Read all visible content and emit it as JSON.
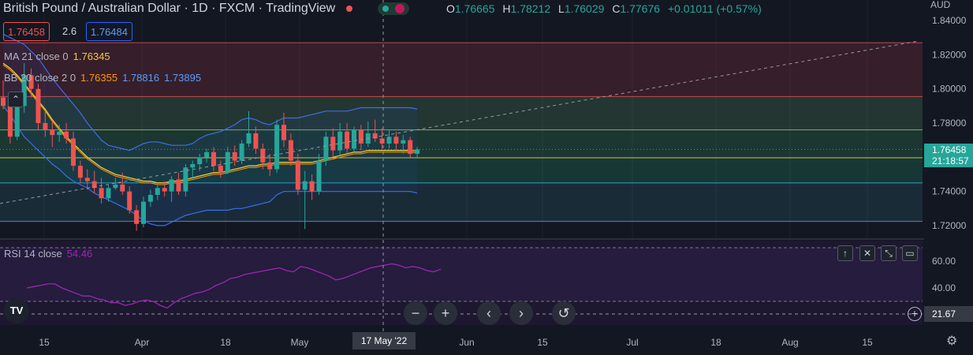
{
  "header": {
    "symbol_title": "British Pound / Australian Dollar · 1D · FXCM · TradingView",
    "ohlc": {
      "o_label": "O",
      "o": "1.76665",
      "h_label": "H",
      "h": "1.78212",
      "l_label": "L",
      "l": "1.76029",
      "c_label": "C",
      "c": "1.77676",
      "change": "+0.01011 (+0.57%)"
    },
    "bid": "1.76458",
    "spread": "2.6",
    "ask": "1.76484"
  },
  "indicators": {
    "ma_label": "MA 21 close 0",
    "ma_value": "1.76345",
    "bb_label": "BB 20 close 2 0",
    "bb_basis": "1.76355",
    "bb_upper": "1.78816",
    "bb_lower": "1.73895",
    "rsi_label": "RSI 14 close",
    "rsi_value": "54.46"
  },
  "price_axis": {
    "currency": "AUD",
    "last_price": "1.76458",
    "countdown": "21:18:57"
  },
  "rsi_axis": {
    "crosshair_value": "21.67"
  },
  "time_axis": {
    "crosshair_label": "17 May '22"
  },
  "colors": {
    "background": "#131722",
    "up": "#26a69a",
    "down": "#ef5350",
    "ma": "#f0c93a",
    "bb": "#3d6de8",
    "rsi": "#9c27b0"
  },
  "chart_data": {
    "type": "candlestick",
    "y_ticks": [
      "1.84000",
      "1.82000",
      "1.80000",
      "1.78000",
      "1.76000",
      "1.74000",
      "1.72000"
    ],
    "ylim": [
      1.715,
      1.845
    ],
    "x_ticks": [
      "15",
      "Apr",
      "18",
      "May",
      "Jun",
      "15",
      "Jul",
      "18",
      "Aug",
      "15"
    ],
    "rsi_ticks": [
      "60.00",
      "40.00"
    ],
    "fib_levels": [
      1.827,
      1.7955,
      1.776,
      1.7597,
      1.745,
      1.7225
    ],
    "candles": [
      {
        "o": 1.795,
        "h": 1.805,
        "l": 1.788,
        "c": 1.79
      },
      {
        "o": 1.79,
        "h": 1.796,
        "l": 1.768,
        "c": 1.772
      },
      {
        "o": 1.772,
        "h": 1.792,
        "l": 1.77,
        "c": 1.79
      },
      {
        "o": 1.79,
        "h": 1.815,
        "l": 1.786,
        "c": 1.808
      },
      {
        "o": 1.808,
        "h": 1.812,
        "l": 1.795,
        "c": 1.8
      },
      {
        "o": 1.8,
        "h": 1.803,
        "l": 1.776,
        "c": 1.78
      },
      {
        "o": 1.78,
        "h": 1.787,
        "l": 1.772,
        "c": 1.776
      },
      {
        "o": 1.776,
        "h": 1.781,
        "l": 1.766,
        "c": 1.773
      },
      {
        "o": 1.773,
        "h": 1.779,
        "l": 1.769,
        "c": 1.775
      },
      {
        "o": 1.775,
        "h": 1.78,
        "l": 1.768,
        "c": 1.771
      },
      {
        "o": 1.771,
        "h": 1.775,
        "l": 1.752,
        "c": 1.755
      },
      {
        "o": 1.755,
        "h": 1.758,
        "l": 1.745,
        "c": 1.748
      },
      {
        "o": 1.748,
        "h": 1.753,
        "l": 1.741,
        "c": 1.746
      },
      {
        "o": 1.746,
        "h": 1.752,
        "l": 1.739,
        "c": 1.742
      },
      {
        "o": 1.742,
        "h": 1.748,
        "l": 1.733,
        "c": 1.736
      },
      {
        "o": 1.736,
        "h": 1.744,
        "l": 1.734,
        "c": 1.742
      },
      {
        "o": 1.742,
        "h": 1.748,
        "l": 1.741,
        "c": 1.744
      },
      {
        "o": 1.744,
        "h": 1.751,
        "l": 1.738,
        "c": 1.74
      },
      {
        "o": 1.74,
        "h": 1.743,
        "l": 1.727,
        "c": 1.729
      },
      {
        "o": 1.729,
        "h": 1.732,
        "l": 1.717,
        "c": 1.721
      },
      {
        "o": 1.721,
        "h": 1.737,
        "l": 1.719,
        "c": 1.734
      },
      {
        "o": 1.734,
        "h": 1.741,
        "l": 1.731,
        "c": 1.738
      },
      {
        "o": 1.738,
        "h": 1.745,
        "l": 1.735,
        "c": 1.742
      },
      {
        "o": 1.742,
        "h": 1.746,
        "l": 1.737,
        "c": 1.74
      },
      {
        "o": 1.74,
        "h": 1.749,
        "l": 1.734,
        "c": 1.747
      },
      {
        "o": 1.747,
        "h": 1.751,
        "l": 1.738,
        "c": 1.74
      },
      {
        "o": 1.74,
        "h": 1.756,
        "l": 1.737,
        "c": 1.754
      },
      {
        "o": 1.754,
        "h": 1.758,
        "l": 1.748,
        "c": 1.756
      },
      {
        "o": 1.756,
        "h": 1.762,
        "l": 1.752,
        "c": 1.76
      },
      {
        "o": 1.76,
        "h": 1.765,
        "l": 1.757,
        "c": 1.763
      },
      {
        "o": 1.763,
        "h": 1.766,
        "l": 1.752,
        "c": 1.755
      },
      {
        "o": 1.755,
        "h": 1.758,
        "l": 1.748,
        "c": 1.751
      },
      {
        "o": 1.751,
        "h": 1.766,
        "l": 1.75,
        "c": 1.763
      },
      {
        "o": 1.763,
        "h": 1.767,
        "l": 1.755,
        "c": 1.758
      },
      {
        "o": 1.758,
        "h": 1.77,
        "l": 1.756,
        "c": 1.768
      },
      {
        "o": 1.768,
        "h": 1.787,
        "l": 1.766,
        "c": 1.774
      },
      {
        "o": 1.774,
        "h": 1.778,
        "l": 1.762,
        "c": 1.765
      },
      {
        "o": 1.765,
        "h": 1.768,
        "l": 1.753,
        "c": 1.757
      },
      {
        "o": 1.757,
        "h": 1.762,
        "l": 1.749,
        "c": 1.753
      },
      {
        "o": 1.753,
        "h": 1.782,
        "l": 1.751,
        "c": 1.779
      },
      {
        "o": 1.779,
        "h": 1.786,
        "l": 1.766,
        "c": 1.77
      },
      {
        "o": 1.77,
        "h": 1.774,
        "l": 1.755,
        "c": 1.758
      },
      {
        "o": 1.758,
        "h": 1.762,
        "l": 1.738,
        "c": 1.741
      },
      {
        "o": 1.741,
        "h": 1.752,
        "l": 1.718,
        "c": 1.746
      },
      {
        "o": 1.746,
        "h": 1.75,
        "l": 1.735,
        "c": 1.74
      },
      {
        "o": 1.74,
        "h": 1.762,
        "l": 1.738,
        "c": 1.758
      },
      {
        "o": 1.758,
        "h": 1.775,
        "l": 1.755,
        "c": 1.772
      },
      {
        "o": 1.772,
        "h": 1.777,
        "l": 1.76,
        "c": 1.764
      },
      {
        "o": 1.764,
        "h": 1.78,
        "l": 1.761,
        "c": 1.775
      },
      {
        "o": 1.775,
        "h": 1.78,
        "l": 1.762,
        "c": 1.765
      },
      {
        "o": 1.765,
        "h": 1.778,
        "l": 1.763,
        "c": 1.776
      },
      {
        "o": 1.776,
        "h": 1.779,
        "l": 1.764,
        "c": 1.768
      },
      {
        "o": 1.768,
        "h": 1.781,
        "l": 1.766,
        "c": 1.774
      },
      {
        "o": 1.774,
        "h": 1.782,
        "l": 1.769,
        "c": 1.771
      },
      {
        "o": 1.771,
        "h": 1.777,
        "l": 1.765,
        "c": 1.768
      },
      {
        "o": 1.768,
        "h": 1.776,
        "l": 1.765,
        "c": 1.772
      },
      {
        "o": 1.772,
        "h": 1.775,
        "l": 1.764,
        "c": 1.768
      },
      {
        "o": 1.768,
        "h": 1.773,
        "l": 1.762,
        "c": 1.77
      },
      {
        "o": 1.77,
        "h": 1.772,
        "l": 1.76,
        "c": 1.762
      },
      {
        "o": 1.762,
        "h": 1.766,
        "l": 1.76,
        "c": 1.7646
      }
    ],
    "ma": [
      1.815,
      1.812,
      1.808,
      1.803,
      1.798,
      1.793,
      1.788,
      1.782,
      1.777,
      1.772,
      1.768,
      1.764,
      1.76,
      1.757,
      1.754,
      1.752,
      1.75,
      1.749,
      1.748,
      1.747,
      1.746,
      1.746,
      1.745,
      1.745,
      1.746,
      1.746,
      1.747,
      1.748,
      1.749,
      1.75,
      1.751,
      1.751,
      1.752,
      1.753,
      1.754,
      1.755,
      1.755,
      1.756,
      1.756,
      1.757,
      1.757,
      1.757,
      1.757,
      1.757,
      1.757,
      1.758,
      1.759,
      1.76,
      1.761,
      1.762,
      1.763,
      1.763,
      1.764,
      1.764,
      1.764,
      1.764,
      1.764,
      1.764,
      1.764,
      1.7635
    ],
    "bb_upper": [
      1.832,
      1.83,
      1.828,
      1.826,
      1.822,
      1.818,
      1.812,
      1.806,
      1.801,
      1.796,
      1.791,
      1.786,
      1.78,
      1.775,
      1.77,
      1.767,
      1.766,
      1.765,
      1.764,
      1.766,
      1.768,
      1.769,
      1.769,
      1.768,
      1.767,
      1.767,
      1.767,
      1.768,
      1.771,
      1.773,
      1.774,
      1.775,
      1.777,
      1.779,
      1.782,
      1.783,
      1.782,
      1.78,
      1.779,
      1.781,
      1.783,
      1.783,
      1.783,
      1.784,
      1.785,
      1.786,
      1.787,
      1.787,
      1.787,
      1.787,
      1.788,
      1.789,
      1.789,
      1.789,
      1.789,
      1.789,
      1.789,
      1.789,
      1.789,
      1.7882
    ],
    "bb_lower": [
      1.79,
      1.785,
      1.778,
      1.772,
      1.768,
      1.764,
      1.76,
      1.756,
      1.753,
      1.749,
      1.746,
      1.744,
      1.742,
      1.739,
      1.737,
      1.735,
      1.733,
      1.731,
      1.729,
      1.726,
      1.723,
      1.721,
      1.72,
      1.72,
      1.722,
      1.724,
      1.726,
      1.727,
      1.728,
      1.729,
      1.729,
      1.729,
      1.729,
      1.73,
      1.73,
      1.731,
      1.732,
      1.733,
      1.734,
      1.738,
      1.74,
      1.74,
      1.74,
      1.74,
      1.74,
      1.74,
      1.74,
      1.74,
      1.74,
      1.74,
      1.74,
      1.74,
      1.74,
      1.74,
      1.74,
      1.74,
      1.74,
      1.74,
      1.74,
      1.739
    ],
    "rsi": [
      40,
      41,
      42,
      43,
      43,
      40,
      38,
      36,
      34,
      34,
      32,
      31,
      29,
      29,
      27,
      28,
      30,
      31,
      30,
      27,
      25,
      29,
      32,
      34,
      36,
      37,
      39,
      42,
      44,
      47,
      48,
      50,
      51,
      52,
      53,
      54,
      55,
      53,
      52,
      56,
      55,
      53,
      51,
      49,
      46,
      47,
      49,
      51,
      53,
      55,
      56,
      57,
      58,
      57,
      55,
      56,
      55,
      53,
      52,
      54
    ]
  }
}
